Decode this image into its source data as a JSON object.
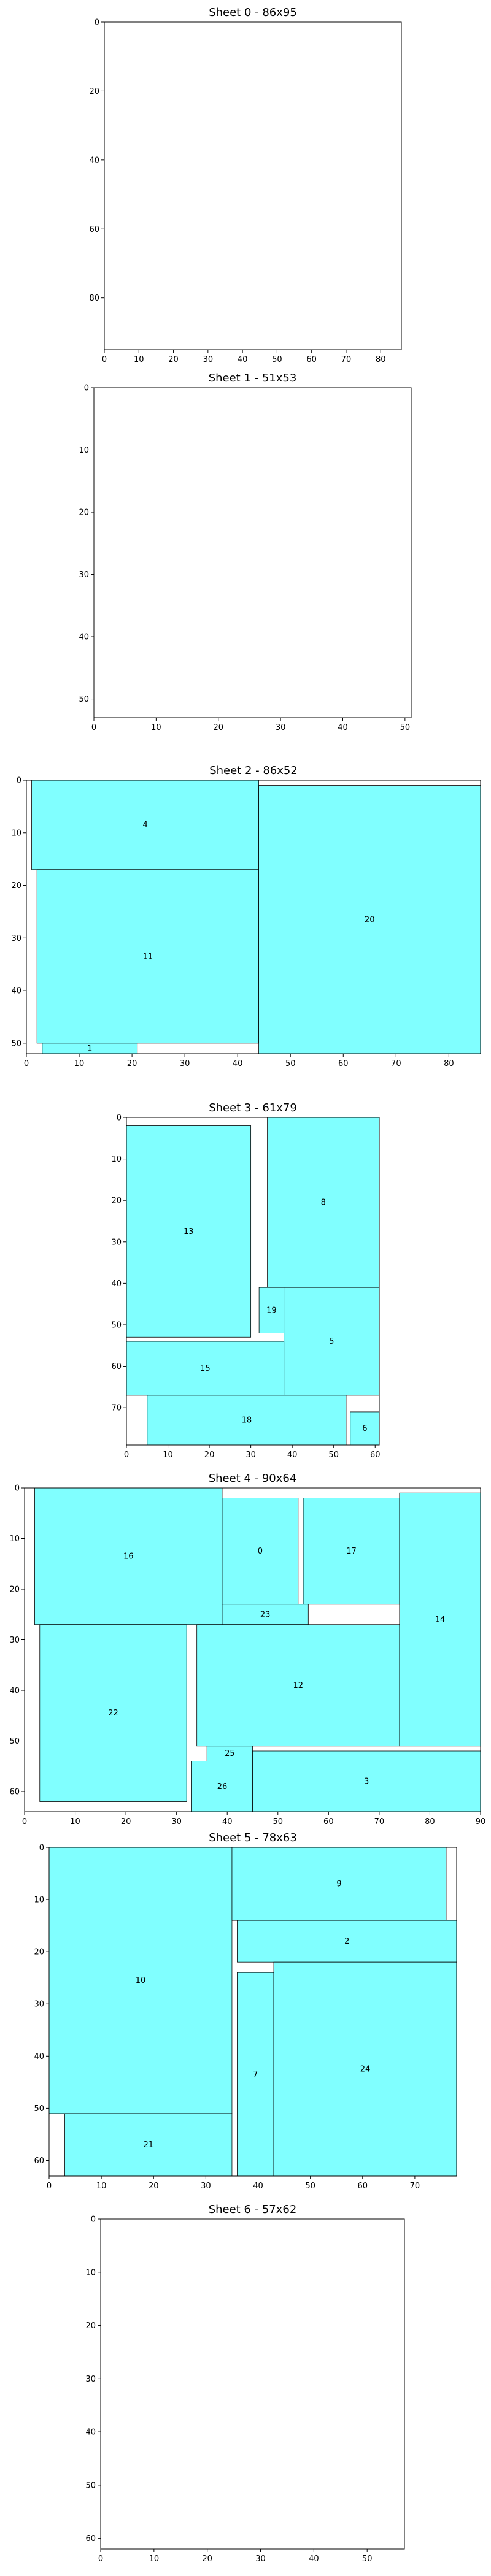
{
  "chart_data": [
    {
      "type": "rect-packing",
      "title": "Sheet 0 - 86x95",
      "width": 86,
      "height": 95,
      "xticks": [
        0,
        10,
        20,
        30,
        40,
        50,
        60,
        70,
        80
      ],
      "yticks": [
        0,
        20,
        40,
        60,
        80
      ],
      "pieces": []
    },
    {
      "type": "rect-packing",
      "title": "Sheet 1 - 51x53",
      "width": 51,
      "height": 53,
      "xticks": [
        0,
        10,
        20,
        30,
        40,
        50
      ],
      "yticks": [
        0,
        10,
        20,
        30,
        40,
        50
      ],
      "pieces": []
    },
    {
      "type": "rect-packing",
      "title": "Sheet 2 - 86x52",
      "width": 86,
      "height": 52,
      "xticks": [
        0,
        10,
        20,
        30,
        40,
        50,
        60,
        70,
        80
      ],
      "yticks": [
        0,
        10,
        20,
        30,
        40,
        50
      ],
      "pieces": [
        {
          "id": "4",
          "x": 1,
          "y": 0,
          "w": 43,
          "h": 17
        },
        {
          "id": "11",
          "x": 2,
          "y": 17,
          "w": 42,
          "h": 33
        },
        {
          "id": "1",
          "x": 3,
          "y": 50,
          "w": 18,
          "h": 2
        },
        {
          "id": "20",
          "x": 44,
          "y": 1,
          "w": 42,
          "h": 51
        }
      ]
    },
    {
      "type": "rect-packing",
      "title": "Sheet 3 - 61x79",
      "width": 61,
      "height": 79,
      "xticks": [
        0,
        10,
        20,
        30,
        40,
        50,
        60
      ],
      "yticks": [
        0,
        10,
        20,
        30,
        40,
        50,
        60,
        70
      ],
      "pieces": [
        {
          "id": "13",
          "x": 0,
          "y": 2,
          "w": 30,
          "h": 51
        },
        {
          "id": "8",
          "x": 34,
          "y": 0,
          "w": 27,
          "h": 41
        },
        {
          "id": "19",
          "x": 32,
          "y": 41,
          "w": 6,
          "h": 11
        },
        {
          "id": "5",
          "x": 38,
          "y": 41,
          "w": 23,
          "h": 26
        },
        {
          "id": "15",
          "x": 0,
          "y": 54,
          "w": 38,
          "h": 13
        },
        {
          "id": "18",
          "x": 5,
          "y": 67,
          "w": 48,
          "h": 12
        },
        {
          "id": "6",
          "x": 54,
          "y": 71,
          "w": 7,
          "h": 8
        }
      ]
    },
    {
      "type": "rect-packing",
      "title": "Sheet 4 - 90x64",
      "width": 90,
      "height": 64,
      "xticks": [
        0,
        10,
        20,
        30,
        40,
        50,
        60,
        70,
        80,
        90
      ],
      "yticks": [
        0,
        10,
        20,
        30,
        40,
        50,
        60
      ],
      "pieces": [
        {
          "id": "16",
          "x": 2,
          "y": 0,
          "w": 37,
          "h": 27
        },
        {
          "id": "0",
          "x": 39,
          "y": 2,
          "w": 15,
          "h": 21
        },
        {
          "id": "17",
          "x": 55,
          "y": 2,
          "w": 19,
          "h": 21
        },
        {
          "id": "14",
          "x": 74,
          "y": 1,
          "w": 16,
          "h": 50
        },
        {
          "id": "23",
          "x": 39,
          "y": 23,
          "w": 17,
          "h": 4
        },
        {
          "id": "22",
          "x": 3,
          "y": 27,
          "w": 29,
          "h": 35
        },
        {
          "id": "12",
          "x": 34,
          "y": 27,
          "w": 40,
          "h": 24
        },
        {
          "id": "25",
          "x": 36,
          "y": 51,
          "w": 9,
          "h": 3
        },
        {
          "id": "26",
          "x": 33,
          "y": 54,
          "w": 12,
          "h": 10
        },
        {
          "id": "3",
          "x": 45,
          "y": 52,
          "w": 45,
          "h": 12
        }
      ]
    },
    {
      "type": "rect-packing",
      "title": "Sheet 5 - 78x63",
      "width": 78,
      "height": 63,
      "xticks": [
        0,
        10,
        20,
        30,
        40,
        50,
        60,
        70
      ],
      "yticks": [
        0,
        10,
        20,
        30,
        40,
        50,
        60
      ],
      "pieces": [
        {
          "id": "10",
          "x": 0,
          "y": 0,
          "w": 35,
          "h": 51
        },
        {
          "id": "9",
          "x": 35,
          "y": 0,
          "w": 41,
          "h": 14
        },
        {
          "id": "2",
          "x": 36,
          "y": 14,
          "w": 42,
          "h": 8
        },
        {
          "id": "7",
          "x": 36,
          "y": 24,
          "w": 7,
          "h": 39
        },
        {
          "id": "24",
          "x": 43,
          "y": 22,
          "w": 35,
          "h": 41
        },
        {
          "id": "21",
          "x": 3,
          "y": 51,
          "w": 32,
          "h": 12
        }
      ]
    },
    {
      "type": "rect-packing",
      "title": "Sheet 6 - 57x62",
      "width": 57,
      "height": 62,
      "xticks": [
        0,
        10,
        20,
        30,
        40,
        50
      ],
      "yticks": [
        0,
        10,
        20,
        30,
        40,
        50,
        60
      ],
      "pieces": []
    }
  ],
  "colors": {
    "piece_fill": "#80ffff",
    "edge": "#000000"
  }
}
